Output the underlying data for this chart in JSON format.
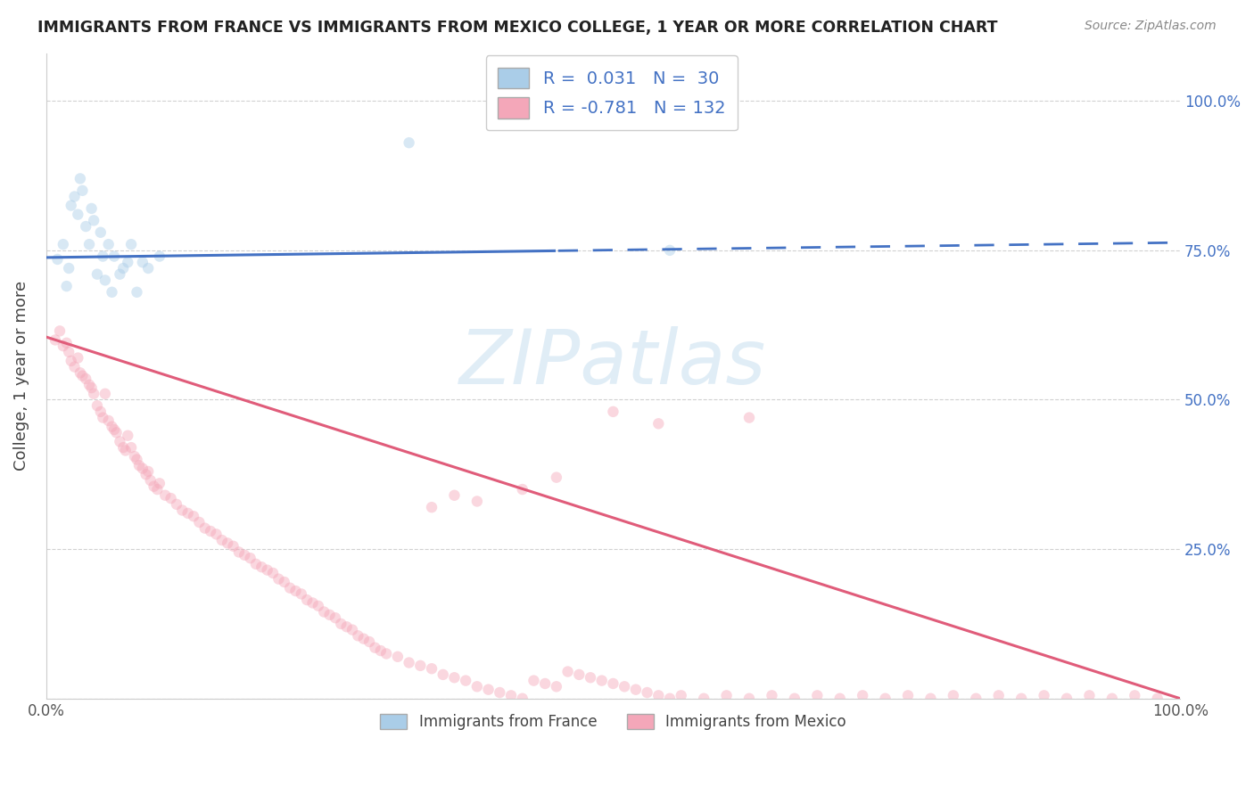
{
  "title": "IMMIGRANTS FROM FRANCE VS IMMIGRANTS FROM MEXICO COLLEGE, 1 YEAR OR MORE CORRELATION CHART",
  "source": "Source: ZipAtlas.com",
  "ylabel": "College, 1 year or more",
  "legend_france": {
    "R": 0.031,
    "N": 30,
    "color": "#aacde8",
    "line_color": "#4472c4"
  },
  "legend_mexico": {
    "R": -0.781,
    "N": 132,
    "color": "#f4a7b9",
    "line_color": "#e05c7a"
  },
  "xlim": [
    0.0,
    1.0
  ],
  "ylim": [
    0.0,
    1.08
  ],
  "background_color": "#ffffff",
  "grid_color": "#cccccc",
  "scatter_size": 80,
  "scatter_alpha": 0.45,
  "france_line_color": "#4472c4",
  "mexico_line_color": "#e05c7a",
  "title_color": "#222222",
  "source_color": "#888888",
  "france_line_intercept": 0.738,
  "france_line_slope": 0.025,
  "mexico_line_intercept": 0.605,
  "mexico_line_slope": -0.605,
  "france_scatter_x": [
    0.01,
    0.015,
    0.018,
    0.02,
    0.022,
    0.025,
    0.028,
    0.03,
    0.032,
    0.035,
    0.038,
    0.04,
    0.042,
    0.045,
    0.048,
    0.05,
    0.052,
    0.055,
    0.058,
    0.06,
    0.065,
    0.068,
    0.072,
    0.075,
    0.08,
    0.085,
    0.09,
    0.1,
    0.32,
    0.55
  ],
  "france_scatter_y": [
    0.735,
    0.76,
    0.69,
    0.72,
    0.825,
    0.84,
    0.81,
    0.87,
    0.85,
    0.79,
    0.76,
    0.82,
    0.8,
    0.71,
    0.78,
    0.74,
    0.7,
    0.76,
    0.68,
    0.74,
    0.71,
    0.72,
    0.73,
    0.76,
    0.68,
    0.73,
    0.72,
    0.74,
    0.93,
    0.75
  ],
  "mexico_scatter_x": [
    0.008,
    0.012,
    0.015,
    0.018,
    0.02,
    0.022,
    0.025,
    0.028,
    0.03,
    0.032,
    0.035,
    0.038,
    0.04,
    0.042,
    0.045,
    0.048,
    0.05,
    0.052,
    0.055,
    0.058,
    0.06,
    0.062,
    0.065,
    0.068,
    0.07,
    0.072,
    0.075,
    0.078,
    0.08,
    0.082,
    0.085,
    0.088,
    0.09,
    0.092,
    0.095,
    0.098,
    0.1,
    0.105,
    0.11,
    0.115,
    0.12,
    0.125,
    0.13,
    0.135,
    0.14,
    0.145,
    0.15,
    0.155,
    0.16,
    0.165,
    0.17,
    0.175,
    0.18,
    0.185,
    0.19,
    0.195,
    0.2,
    0.205,
    0.21,
    0.215,
    0.22,
    0.225,
    0.23,
    0.235,
    0.24,
    0.245,
    0.25,
    0.255,
    0.26,
    0.265,
    0.27,
    0.275,
    0.28,
    0.285,
    0.29,
    0.295,
    0.3,
    0.31,
    0.32,
    0.33,
    0.34,
    0.35,
    0.36,
    0.37,
    0.38,
    0.39,
    0.4,
    0.41,
    0.42,
    0.43,
    0.44,
    0.45,
    0.46,
    0.47,
    0.48,
    0.49,
    0.5,
    0.51,
    0.52,
    0.53,
    0.54,
    0.55,
    0.56,
    0.58,
    0.6,
    0.62,
    0.64,
    0.66,
    0.68,
    0.7,
    0.72,
    0.74,
    0.76,
    0.78,
    0.8,
    0.82,
    0.84,
    0.86,
    0.88,
    0.9,
    0.92,
    0.94,
    0.96,
    0.98,
    0.62,
    0.5,
    0.45,
    0.54,
    0.42,
    0.38,
    0.36,
    0.34
  ],
  "mexico_scatter_y": [
    0.6,
    0.615,
    0.59,
    0.595,
    0.58,
    0.565,
    0.555,
    0.57,
    0.545,
    0.54,
    0.535,
    0.525,
    0.52,
    0.51,
    0.49,
    0.48,
    0.47,
    0.51,
    0.465,
    0.455,
    0.45,
    0.445,
    0.43,
    0.42,
    0.415,
    0.44,
    0.42,
    0.405,
    0.4,
    0.39,
    0.385,
    0.375,
    0.38,
    0.365,
    0.355,
    0.35,
    0.36,
    0.34,
    0.335,
    0.325,
    0.315,
    0.31,
    0.305,
    0.295,
    0.285,
    0.28,
    0.275,
    0.265,
    0.26,
    0.255,
    0.245,
    0.24,
    0.235,
    0.225,
    0.22,
    0.215,
    0.21,
    0.2,
    0.195,
    0.185,
    0.18,
    0.175,
    0.165,
    0.16,
    0.155,
    0.145,
    0.14,
    0.135,
    0.125,
    0.12,
    0.115,
    0.105,
    0.1,
    0.095,
    0.085,
    0.08,
    0.075,
    0.07,
    0.06,
    0.055,
    0.05,
    0.04,
    0.035,
    0.03,
    0.02,
    0.015,
    0.01,
    0.005,
    0.0,
    0.03,
    0.025,
    0.02,
    0.045,
    0.04,
    0.035,
    0.03,
    0.025,
    0.02,
    0.015,
    0.01,
    0.005,
    0.0,
    0.005,
    0.0,
    0.005,
    0.0,
    0.005,
    0.0,
    0.005,
    0.0,
    0.005,
    0.0,
    0.005,
    0.0,
    0.005,
    0.0,
    0.005,
    0.0,
    0.005,
    0.0,
    0.005,
    0.0,
    0.005,
    0.0,
    0.47,
    0.48,
    0.37,
    0.46,
    0.35,
    0.33,
    0.34,
    0.32
  ]
}
